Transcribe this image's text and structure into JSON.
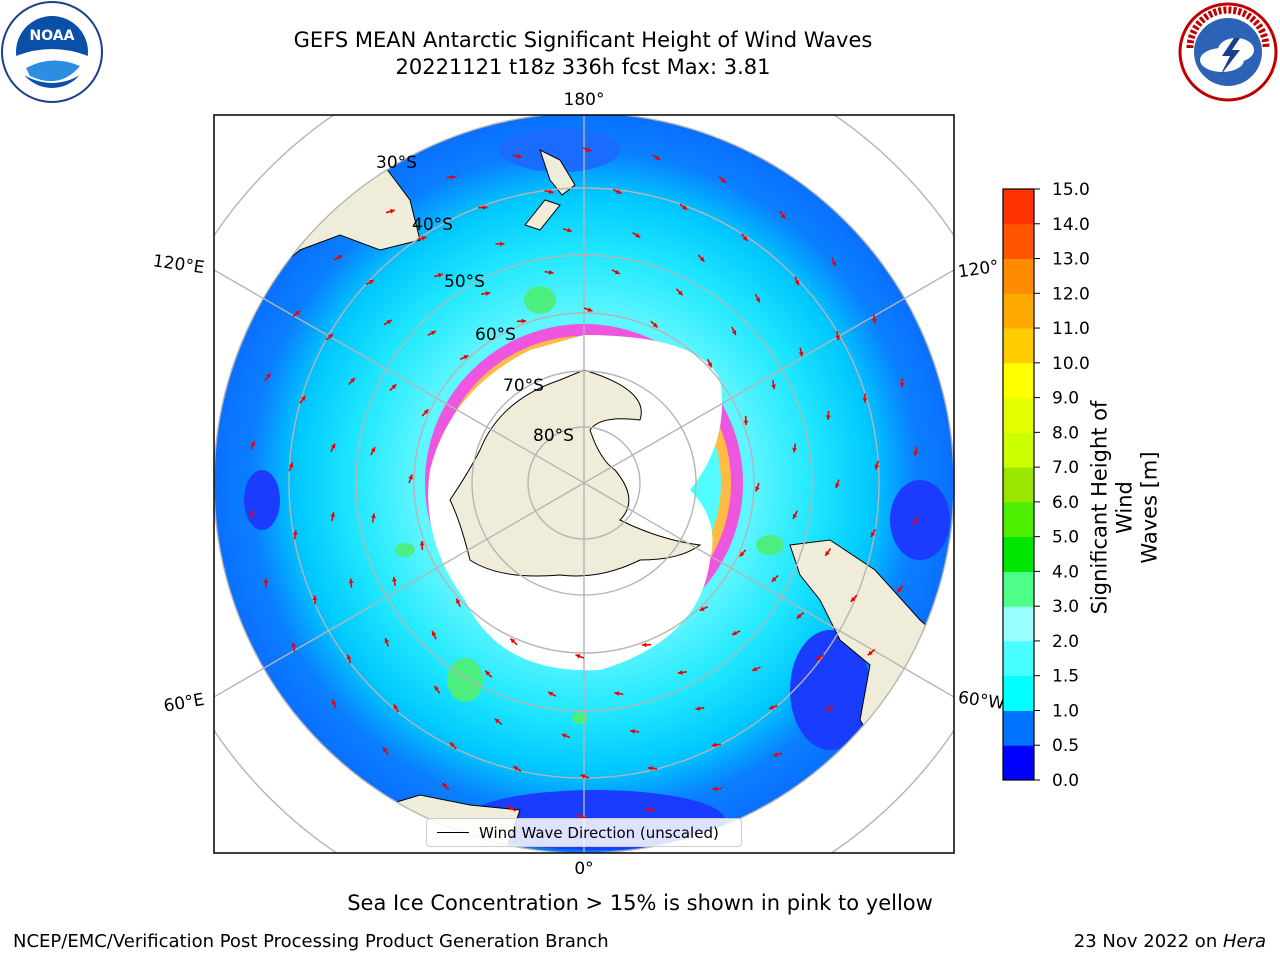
{
  "header": {
    "title_line1": "GEFS MEAN Antarctic Significant Height of Wind Waves",
    "title_line2": "20221121 t18z 336h fcst   Max: 3.81"
  },
  "logos": {
    "left": {
      "text": "NOAA",
      "ring_text": "NATIONAL OCEANIC AND ATMOSPHERIC ADMINISTRATION · U.S. DEPARTMENT OF COMMERCE"
    },
    "right": {
      "ring_text": "NATIONAL WEATHER SERVICE"
    }
  },
  "map": {
    "longitude_labels": {
      "top": "180°",
      "bottom": "0°",
      "left_upper": "120°E",
      "left_lower": "60°E",
      "right_upper": "120°",
      "right_lower": "60°W"
    },
    "latitude_labels": [
      "30°S",
      "40°S",
      "50°S",
      "60°S",
      "70°S",
      "80°S"
    ],
    "legend_label": "Wind Wave Direction (unscaled)",
    "colors": {
      "ocean_low": "#0000ff",
      "ocean_mid": "#007fff",
      "ocean_cyan": "#00ffff",
      "ocean_lightcyan": "#4dffff",
      "ice": "#ffffff",
      "ice_edge_pink": "#ff33cc",
      "ice_edge_yellow": "#ffcc33",
      "land": "#efedd9",
      "arrow": "#ff0000"
    }
  },
  "colorbar": {
    "label": "Significant Height of Wind Waves [m]",
    "label_line1": "Significant Height of Wind",
    "label_line2": "Waves [m]",
    "ticks": [
      "0.0",
      "0.5",
      "1.0",
      "1.5",
      "2.0",
      "3.0",
      "4.0",
      "5.0",
      "6.0",
      "7.0",
      "8.0",
      "9.0",
      "10.0",
      "11.0",
      "12.0",
      "13.0",
      "14.0",
      "15.0"
    ],
    "colors": [
      "#0000ff",
      "#0073ff",
      "#00ffff",
      "#47ffff",
      "#99ffff",
      "#4dff88",
      "#00e600",
      "#4dee00",
      "#99e600",
      "#ccff00",
      "#e6ff00",
      "#ffff00",
      "#ffcc00",
      "#ffaa00",
      "#ff8c00",
      "#ff5500",
      "#ff3300",
      "#ff0000"
    ]
  },
  "caption": "Sea Ice Concentration > 15% is shown in pink to yellow",
  "footer": {
    "left": "NCEP/EMC/Verification Post Processing Product Generation Branch",
    "right_prefix": "23 Nov 2022 on ",
    "right_host": "Hera"
  }
}
